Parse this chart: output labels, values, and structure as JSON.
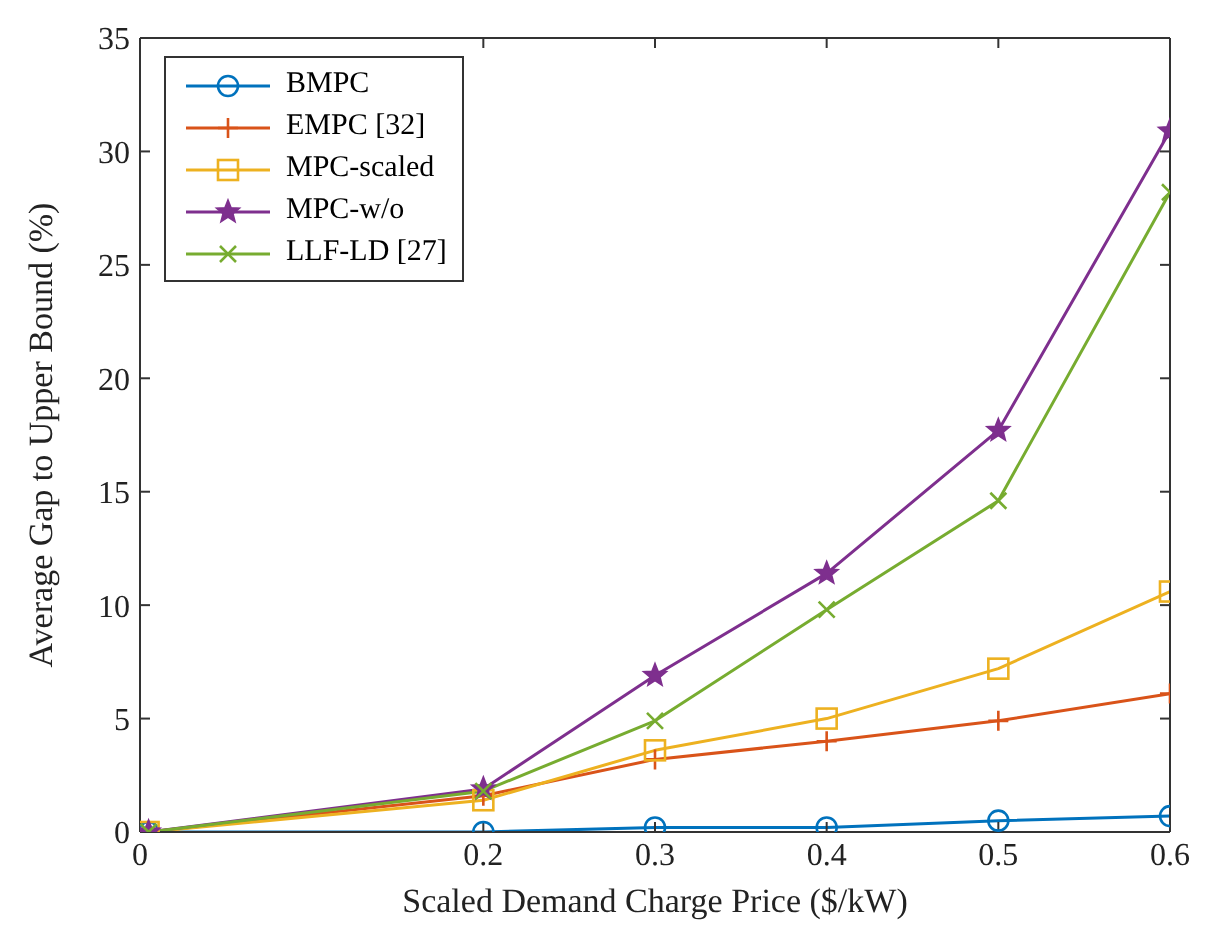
{
  "chart_data": {
    "type": "line",
    "xlabel": "Scaled Demand Charge Price ($/kW)",
    "ylabel": "Average Gap to Upper Bound (%)",
    "x": [
      0.005,
      0.2,
      0.3,
      0.4,
      0.5,
      0.6
    ],
    "series": [
      {
        "name": "BMPC",
        "color": "#0072bd",
        "marker": "circle",
        "values": [
          0,
          0,
          0.2,
          0.2,
          0.5,
          0.7
        ]
      },
      {
        "name": "EMPC [32]",
        "color": "#d95319",
        "marker": "cross",
        "values": [
          0,
          1.6,
          3.2,
          4.0,
          4.9,
          6.1
        ]
      },
      {
        "name": "MPC-scaled",
        "color": "#edb120",
        "marker": "square",
        "values": [
          0,
          1.4,
          3.6,
          5.0,
          7.2,
          10.6
        ]
      },
      {
        "name": "MPC-w/o",
        "color": "#7e2f8e",
        "marker": "star",
        "values": [
          0,
          1.9,
          6.9,
          11.4,
          17.7,
          30.9
        ]
      },
      {
        "name": "LLF-LD [27]",
        "color": "#77ac30",
        "marker": "x",
        "values": [
          0,
          1.8,
          4.9,
          9.8,
          14.6,
          28.2
        ]
      }
    ],
    "xlim": [
      0,
      0.6
    ],
    "xticks": [
      0,
      0.2,
      0.3,
      0.4,
      0.5,
      0.6
    ],
    "ylim": [
      0,
      35
    ],
    "yticks": [
      0,
      5,
      10,
      15,
      20,
      25,
      30,
      35
    ],
    "grid": false,
    "legend": "top left",
    "line_style": "solid"
  }
}
